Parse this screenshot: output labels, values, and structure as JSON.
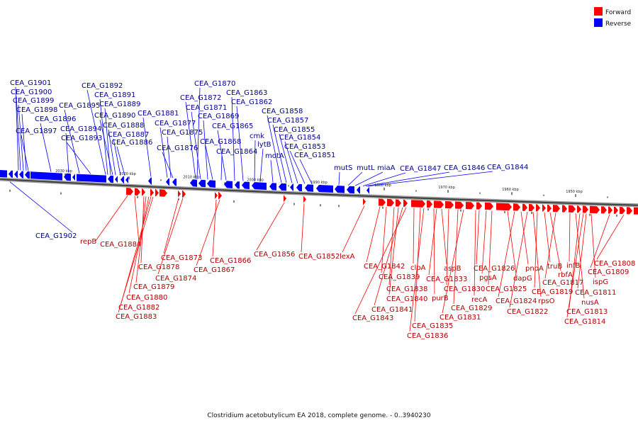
{
  "legend": [
    {
      "label": "Forward",
      "color": "#ff0000"
    },
    {
      "label": "Reverse",
      "color": "#0000ff"
    }
  ],
  "caption": "Clostridium acetobutylicum EA 2018, complete genome. - 0..3940230",
  "scale_ticks": [
    "2030 kbp",
    "2020 kbp",
    "2010 kbp",
    "2000 kbp",
    "1990 kbp",
    "1980 kbp",
    "1970 kbp",
    "1960 kbp",
    "1950 kbp"
  ],
  "reverse_genes": [
    "CEA_G1901",
    "CEA_G1900",
    "CEA_G1899",
    "CEA_G1898",
    "CEA_G1897",
    "CEA_G1896",
    "CEA_G1895",
    "CEA_G1894",
    "CEA_G1893",
    "CEA_G1892",
    "CEA_G1891",
    "CEA_G1889",
    "CEA_G1890",
    "CEA_G1888",
    "CEA_G1887",
    "CEA_G1886",
    "CEA_G1881",
    "CEA_G1877",
    "CEA_G1875",
    "CEA_G1876",
    "CEA_G1870",
    "CEA_G1872",
    "CEA_G1871",
    "CEA_G1869",
    "CEA_G1865",
    "CEA_G1868",
    "CEA_G1864",
    "CEA_G1863",
    "CEA_G1862",
    "cmk",
    "lytB",
    "motA",
    "CEA_G1858",
    "CEA_G1857",
    "CEA_G1855",
    "CEA_G1854",
    "CEA_G1853",
    "CEA_G1851",
    "mutS",
    "mutL",
    "miaA",
    "CEA_G1847",
    "CEA_G1846",
    "CEA_G1844",
    "CEA_G1902"
  ],
  "forward_genes": [
    "repB",
    "CEA_G1884",
    "CEA_G1878",
    "CEA_G1879",
    "CEA_G1880",
    "CEA_G1882",
    "CEA_G1883",
    "CEA_G1873",
    "CEA_G1874",
    "CEA_G1866",
    "CEA_G1867",
    "CEA_G1856",
    "CEA_G1852",
    "lexA",
    "CEA_G1842",
    "CEA_G1839",
    "CEA_G1838",
    "CEA_G1840",
    "CEA_G1841",
    "CEA_G1843",
    "clpA",
    "CEA_G1835",
    "CEA_G1836",
    "purB",
    "CEA_G1833",
    "aspB",
    "CEA_G1830",
    "CEA_G1829",
    "CEA_G1831",
    "recA",
    "CEA_G1826",
    "pgsA",
    "CEA_G1825",
    "dapG",
    "CEA_G1824",
    "pnpA",
    "CEA_G1822",
    "rpsO",
    "CEA_G1819",
    "truB",
    "rbfA",
    "CEA_G1817",
    "infB",
    "nusA",
    "CEA_G1813",
    "CEA_G1814",
    "CEA_G1811",
    "ispG",
    "CEA_G1809",
    "CEA_G1808"
  ]
}
